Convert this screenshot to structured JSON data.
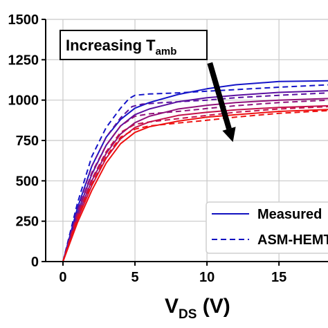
{
  "chart_data": {
    "type": "line",
    "xlabel": {
      "main": "V",
      "sub": "DS",
      "suffix": " (V)"
    },
    "ylabel": "",
    "xlim": [
      -1.2,
      18.5
    ],
    "ylim": [
      0,
      1500
    ],
    "xticks": [
      0,
      5,
      10,
      15
    ],
    "yticks": [
      0,
      250,
      500,
      750,
      1000,
      1250,
      1500
    ],
    "grid": true,
    "annotation": {
      "text_main": "Increasing T",
      "text_sub": "amb",
      "arrow": {
        "from": [
          10.2,
          1230
        ],
        "to": [
          11.8,
          740
        ]
      }
    },
    "legend": {
      "placement": "bottom-right",
      "entries": [
        {
          "label": "Measured",
          "style": "solid",
          "color": "#1010c0"
        },
        {
          "label": "ASM-HEMT",
          "style": "dashed",
          "color": "#1010c0"
        }
      ]
    },
    "series": [
      {
        "color": "#1414c8",
        "style": "solid",
        "x": [
          0,
          1,
          2,
          3,
          4,
          5,
          6,
          8,
          10,
          12,
          15,
          18.5
        ],
        "y": [
          0,
          330,
          590,
          770,
          880,
          950,
          985,
          1035,
          1070,
          1095,
          1115,
          1120
        ]
      },
      {
        "color": "#1414c8",
        "style": "dashed",
        "x": [
          0,
          1,
          2,
          3,
          4,
          4.6,
          5,
          6,
          8,
          10,
          12,
          15,
          18.5
        ],
        "y": [
          0,
          360,
          650,
          830,
          950,
          1010,
          1030,
          1038,
          1045,
          1055,
          1065,
          1080,
          1095
        ]
      },
      {
        "color": "#5a10a0",
        "style": "solid",
        "x": [
          0,
          1,
          2,
          3,
          4,
          5,
          6,
          8,
          10,
          12,
          15,
          18.5
        ],
        "y": [
          0,
          300,
          540,
          720,
          840,
          910,
          945,
          990,
          1015,
          1030,
          1048,
          1058
        ]
      },
      {
        "color": "#5a10a0",
        "style": "dashed",
        "x": [
          0,
          1,
          2,
          3,
          4,
          4.8,
          5.5,
          7,
          10,
          12,
          15,
          18.5
        ],
        "y": [
          0,
          320,
          590,
          770,
          890,
          960,
          975,
          985,
          1000,
          1015,
          1030,
          1045
        ]
      },
      {
        "color": "#90107a",
        "style": "solid",
        "x": [
          0,
          1,
          2,
          3,
          4,
          5,
          6,
          8,
          10,
          12,
          15,
          18.5
        ],
        "y": [
          0,
          280,
          500,
          670,
          790,
          860,
          900,
          945,
          968,
          985,
          1000,
          1010
        ]
      },
      {
        "color": "#90107a",
        "style": "dashed",
        "x": [
          0,
          1,
          2,
          3,
          4,
          5,
          6,
          8,
          10,
          12,
          15,
          18.5
        ],
        "y": [
          0,
          300,
          550,
          720,
          840,
          900,
          915,
          930,
          948,
          965,
          985,
          1000
        ]
      },
      {
        "color": "#c4104a",
        "style": "solid",
        "x": [
          0,
          1,
          2,
          3,
          4,
          5,
          6,
          8,
          10,
          12,
          15,
          18.5
        ],
        "y": [
          0,
          260,
          470,
          640,
          760,
          830,
          865,
          905,
          925,
          940,
          955,
          965
        ]
      },
      {
        "color": "#c4104a",
        "style": "dashed",
        "x": [
          0,
          1,
          2,
          3,
          4,
          5,
          6,
          8,
          10,
          12,
          15,
          18.5
        ],
        "y": [
          0,
          280,
          510,
          680,
          800,
          850,
          865,
          885,
          905,
          925,
          945,
          960
        ]
      },
      {
        "color": "#ee1010",
        "style": "solid",
        "x": [
          0,
          1,
          2,
          3,
          4,
          5,
          6,
          8,
          10,
          12,
          15,
          18.5
        ],
        "y": [
          0,
          240,
          440,
          610,
          730,
          800,
          835,
          870,
          895,
          910,
          930,
          942
        ]
      },
      {
        "color": "#ee1010",
        "style": "dashed",
        "x": [
          0,
          1,
          2,
          3,
          4,
          5,
          6,
          8,
          10,
          12,
          15,
          18.5
        ],
        "y": [
          0,
          260,
          480,
          650,
          770,
          820,
          840,
          858,
          875,
          895,
          918,
          935
        ]
      }
    ]
  }
}
